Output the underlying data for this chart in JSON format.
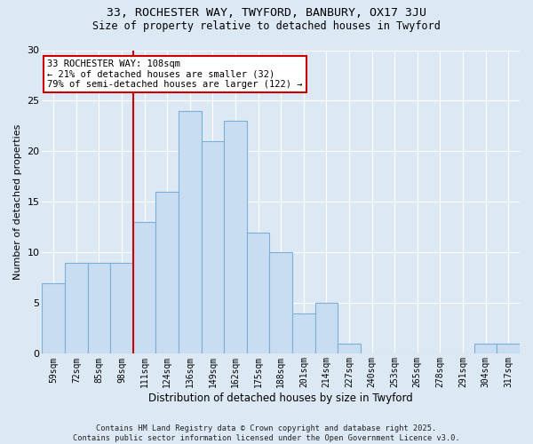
{
  "title1": "33, ROCHESTER WAY, TWYFORD, BANBURY, OX17 3JU",
  "title2": "Size of property relative to detached houses in Twyford",
  "xlabel": "Distribution of detached houses by size in Twyford",
  "ylabel": "Number of detached properties",
  "bins": [
    "59sqm",
    "72sqm",
    "85sqm",
    "98sqm",
    "111sqm",
    "124sqm",
    "136sqm",
    "149sqm",
    "162sqm",
    "175sqm",
    "188sqm",
    "201sqm",
    "214sqm",
    "227sqm",
    "240sqm",
    "253sqm",
    "265sqm",
    "278sqm",
    "291sqm",
    "304sqm",
    "317sqm"
  ],
  "values": [
    7,
    9,
    9,
    9,
    13,
    16,
    24,
    21,
    23,
    12,
    10,
    4,
    5,
    1,
    0,
    0,
    0,
    0,
    0,
    1,
    1
  ],
  "bar_color": "#c9ddf2",
  "bar_edge_color": "#7bafd4",
  "vline_color": "#cc0000",
  "annotation_text": "33 ROCHESTER WAY: 108sqm\n← 21% of detached houses are smaller (32)\n79% of semi-detached houses are larger (122) →",
  "annotation_box_color": "#ffffff",
  "annotation_border_color": "#cc0000",
  "ylim": [
    0,
    30
  ],
  "yticks": [
    0,
    5,
    10,
    15,
    20,
    25,
    30
  ],
  "background_color": "#dce9f5",
  "footer": "Contains HM Land Registry data © Crown copyright and database right 2025.\nContains public sector information licensed under the Open Government Licence v3.0."
}
